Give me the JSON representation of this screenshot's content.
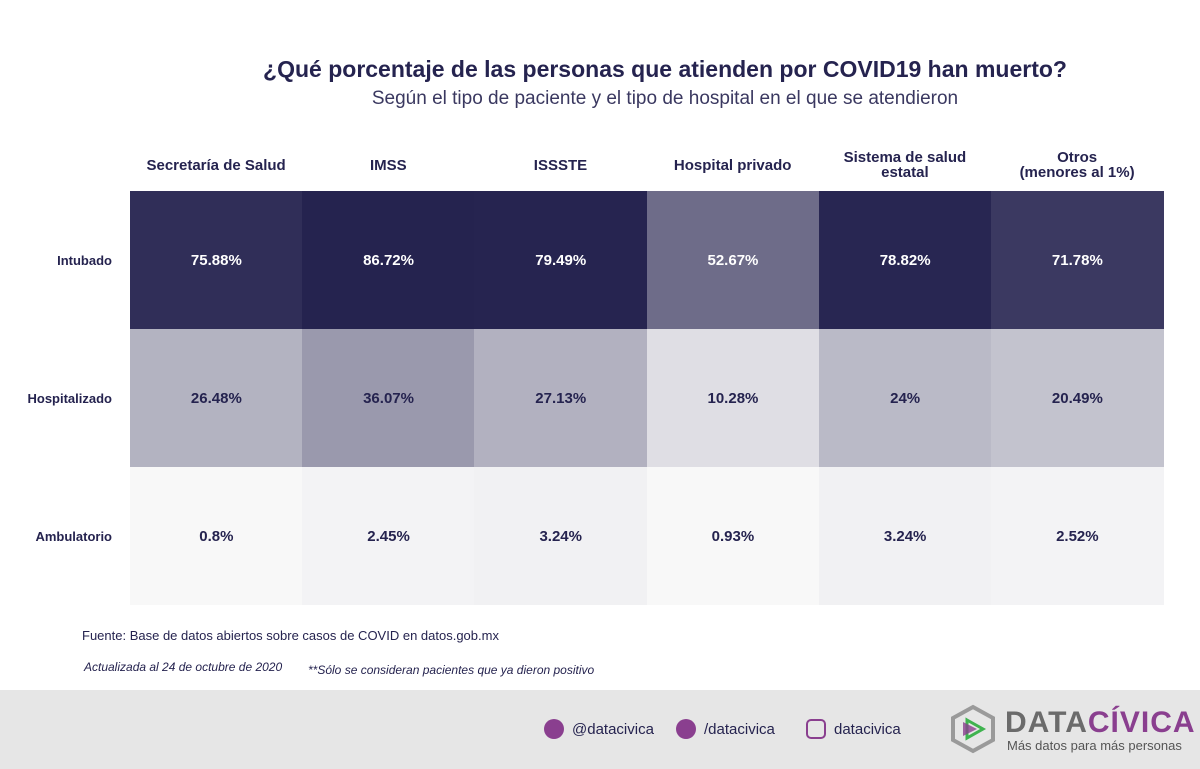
{
  "chart_data": {
    "type": "heatmap",
    "title": "¿Qué porcentaje de las personas que atienden por COVID19 han muerto?",
    "subtitle": "Según el tipo de paciente y el tipo de hospital en el que se atendieron",
    "categories": [
      "Secretaría de Salud",
      "IMSS",
      "ISSSTE",
      "Hospital privado",
      "Sistema de salud estatal",
      "Otros\n(menores al 1%)"
    ],
    "rows": [
      "Intubado",
      "Hospitalizado",
      "Ambulatorio"
    ],
    "values": [
      [
        75.88,
        86.72,
        79.49,
        52.67,
        78.82,
        71.78
      ],
      [
        26.48,
        36.07,
        27.13,
        10.28,
        24,
        20.49
      ],
      [
        0.8,
        2.45,
        3.24,
        0.93,
        3.24,
        2.52
      ]
    ],
    "value_labels": [
      [
        "75.88%",
        "86.72%",
        "79.49%",
        "52.67%",
        "78.82%",
        "71.78%"
      ],
      [
        "26.48%",
        "36.07%",
        "27.13%",
        "10.28%",
        "24%",
        "20.49%"
      ],
      [
        "0.8%",
        "2.45%",
        "3.24%",
        "0.93%",
        "3.24%",
        "2.52%"
      ]
    ],
    "color_low": "#fafafa",
    "color_high": "#25234f",
    "color_range": [
      0,
      80
    ]
  },
  "footer": {
    "source": "Fuente: Base de datos abiertos sobre casos de COVID en datos.gob.mx",
    "updated": "Actualizada al 24 de octubre de 2020",
    "note": "**Sólo se consideran pacientes que ya dieron positivo",
    "twitter": "@datacivica",
    "facebook": "/datacivica",
    "instagram": "datacivica",
    "logo_a": "DATA",
    "logo_b": "CÍVICA",
    "tagline": "Más datos para más personas"
  }
}
